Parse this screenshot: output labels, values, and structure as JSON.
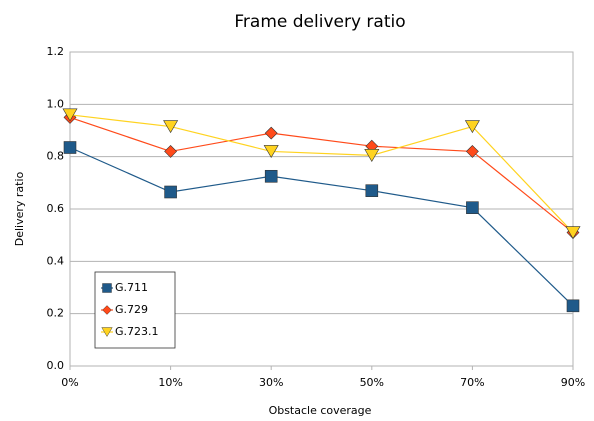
{
  "chart_data": {
    "type": "line",
    "title": "Frame delivery ratio",
    "x_label": "Obstacle coverage",
    "y_label": "Delivery ratio",
    "categories": [
      "0%",
      "10%",
      "30%",
      "50%",
      "70%",
      "90%"
    ],
    "series": [
      {
        "name": "G.711",
        "color": "#1f5a8a",
        "marker": "square",
        "values": [
          0.835,
          0.665,
          0.725,
          0.67,
          0.605,
          0.23
        ]
      },
      {
        "name": "G.729",
        "color": "#ff4a1a",
        "marker": "diamond",
        "values": [
          0.95,
          0.82,
          0.89,
          0.84,
          0.82,
          0.51
        ]
      },
      {
        "name": "G.723.1",
        "color": "#ffd320",
        "marker": "triangle-down",
        "values": [
          0.96,
          0.915,
          0.82,
          0.805,
          0.915,
          0.51
        ]
      }
    ],
    "ylim": [
      0,
      1.2
    ],
    "yticks": [
      {
        "value": 0,
        "label": "0.0"
      },
      0.2,
      0.4,
      0.6,
      0.8,
      {
        "value": 1,
        "label": "1.0"
      },
      1.2
    ],
    "grid": true,
    "legend": "lower-left"
  }
}
